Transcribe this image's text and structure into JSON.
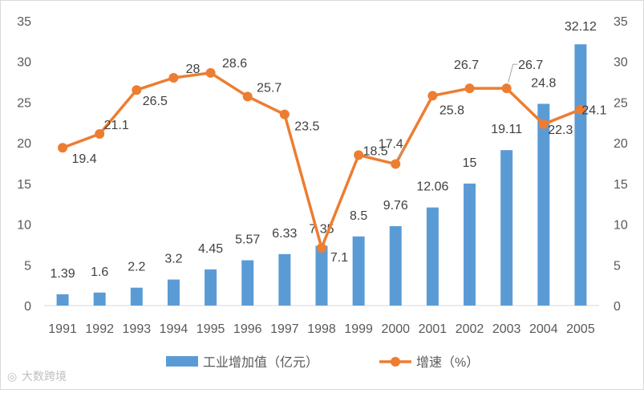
{
  "chart_data": {
    "type": "bar+line",
    "categories": [
      "1991",
      "1992",
      "1993",
      "1994",
      "1995",
      "1996",
      "1997",
      "1998",
      "1999",
      "2000",
      "2001",
      "2002",
      "2003",
      "2004",
      "2005"
    ],
    "series": [
      {
        "name": "工业增加值（亿元）",
        "type": "bar",
        "axis": "left",
        "color": "#5b9bd5",
        "values": [
          1.39,
          1.6,
          2.2,
          3.2,
          4.45,
          5.57,
          6.33,
          7.35,
          8.5,
          9.76,
          12.06,
          15,
          19.11,
          24.8,
          32.12
        ],
        "labels": [
          "1.39",
          "1.6",
          "2.2",
          "3.2",
          "4.45",
          "5.57",
          "6.33",
          "7.35",
          "8.5",
          "9.76",
          "12.06",
          "15",
          "19.11",
          "24.8",
          "32.12"
        ]
      },
      {
        "name": "增速（%）",
        "type": "line",
        "axis": "right",
        "color": "#ed7d31",
        "values": [
          19.4,
          21.1,
          26.5,
          28,
          28.6,
          25.7,
          23.5,
          7.1,
          18.5,
          17.4,
          25.8,
          26.7,
          26.7,
          22.3,
          24.1
        ],
        "labels": [
          "19.4",
          "21.1",
          "26.5",
          "28",
          "28.6",
          "25.7",
          "23.5",
          "7.1",
          "18.5",
          "17.4",
          "25.8",
          "26.7",
          "26.7",
          "22.3",
          "24.1"
        ]
      }
    ],
    "y_left": {
      "min": 0,
      "max": 35,
      "ticks": [
        "0",
        "5",
        "10",
        "15",
        "20",
        "25",
        "30",
        "35"
      ]
    },
    "y_right": {
      "min": 0,
      "max": 35,
      "ticks": [
        "0",
        "5",
        "10",
        "15",
        "20",
        "25",
        "30",
        "35"
      ]
    },
    "grid": false,
    "legend_position": "bottom"
  },
  "watermark": "大数跨境"
}
